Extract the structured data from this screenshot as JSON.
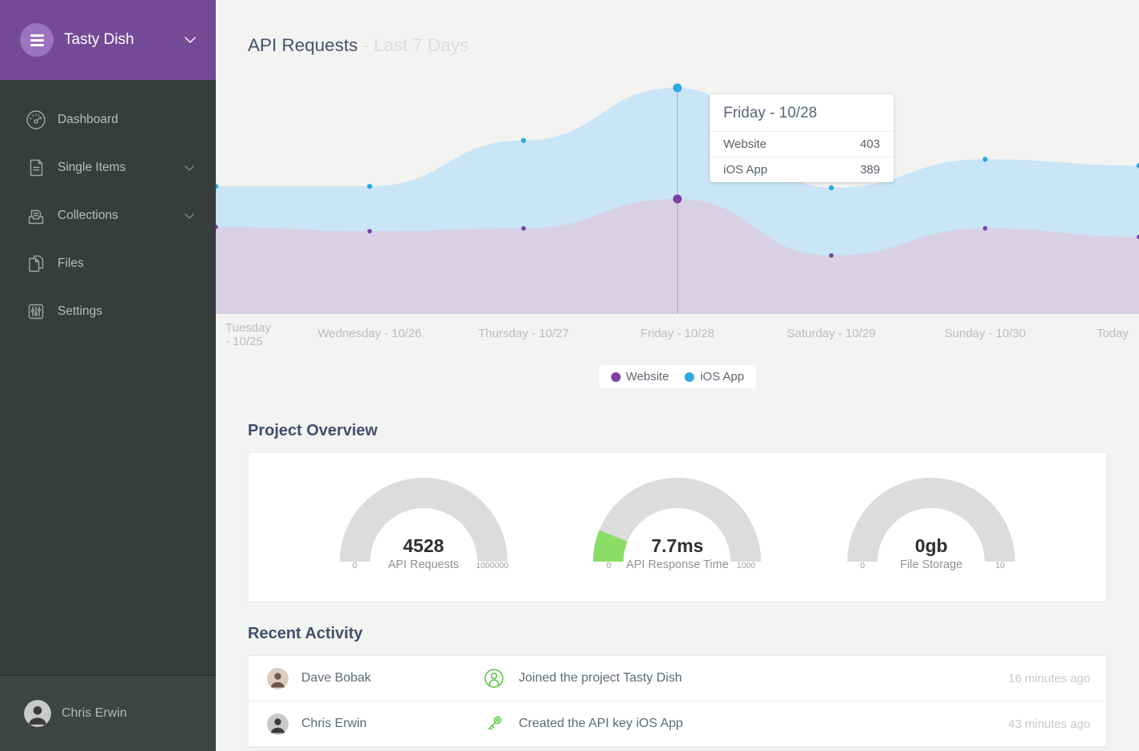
{
  "colors": {
    "brand_purple": "#744a97",
    "logo_circle": "#9c73be",
    "sidebar_bg": "#373d3b",
    "website_series": "#7b3ea5",
    "website_area": "#d8d1e4",
    "ios_series": "#29abe2",
    "ios_area": "#c9e5f6",
    "gauge_gray": "#dcdcdc",
    "gauge_green": "#8bdd67",
    "activity_icon_green": "#55c43e"
  },
  "sidebar": {
    "project": {
      "name": "Tasty Dish",
      "logo_icon": "hamburger-menu-icon",
      "chevron_icon": "chevron-down-icon"
    },
    "items": [
      {
        "label": "Dashboard",
        "icon": "dashboard-gauge-icon",
        "has_chevron": false
      },
      {
        "label": "Single Items",
        "icon": "single-item-document-icon",
        "has_chevron": true
      },
      {
        "label": "Collections",
        "icon": "collections-tray-icon",
        "has_chevron": true
      },
      {
        "label": "Files",
        "icon": "files-pages-icon",
        "has_chevron": false
      },
      {
        "label": "Settings",
        "icon": "settings-sliders-icon",
        "has_chevron": false
      }
    ],
    "user": {
      "name": "Chris Erwin",
      "avatar_icon": "user-avatar-photo"
    }
  },
  "header": {
    "title": "API Requests",
    "subtitle": "- Last 7 Days"
  },
  "chart_data": {
    "type": "area",
    "stacked": true,
    "categories": [
      "Tuesday - 10/25",
      "Wednesday - 10/26",
      "Thursday - 10/27",
      "Friday - 10/28",
      "Saturday - 10/29",
      "Sunday - 10/30",
      "Today"
    ],
    "series": [
      {
        "name": "Website",
        "color": "#7b3ea5",
        "area_color": "#d8d1e4",
        "values": [
          305,
          290,
          300,
          403,
          205,
          300,
          270
        ]
      },
      {
        "name": "iOS App",
        "color": "#29abe2",
        "area_color": "#c9e5f6",
        "values": [
          142,
          157,
          308,
          389,
          237,
          242,
          250
        ]
      }
    ],
    "title": "API Requests - Last 7 Days",
    "xlabel": "",
    "ylabel": "",
    "ylim": [
      0,
      1100
    ],
    "grid": false,
    "legend_position": "bottom-center",
    "active_index": 3
  },
  "tooltip": {
    "title": "Friday - 10/28",
    "rows": [
      {
        "label": "Website",
        "value": "403"
      },
      {
        "label": "iOS App",
        "value": "389"
      }
    ]
  },
  "legend": {
    "items": [
      {
        "label": "Website",
        "color": "#7b3ea5"
      },
      {
        "label": "iOS App",
        "color": "#29abe2"
      }
    ]
  },
  "overview": {
    "heading": "Project Overview",
    "gauges": [
      {
        "value": "4528",
        "label": "API Requests",
        "min": "0",
        "max": "1000000",
        "green_sweep_deg": 0
      },
      {
        "value": "7.7ms",
        "label": "API Response Time",
        "min": "0",
        "max": "1000",
        "green_sweep_deg": 22
      },
      {
        "value": "0gb",
        "label": "File Storage",
        "min": "0",
        "max": "10",
        "green_sweep_deg": 0
      }
    ]
  },
  "activity": {
    "heading": "Recent Activity",
    "rows": [
      {
        "user": "Dave Bobak",
        "icon": "member-joined-icon",
        "text": "Joined the project Tasty Dish",
        "time": "16 minutes ago"
      },
      {
        "user": "Chris Erwin",
        "icon": "api-key-icon",
        "text": "Created the API key iOS App",
        "time": "43 minutes ago"
      }
    ]
  }
}
